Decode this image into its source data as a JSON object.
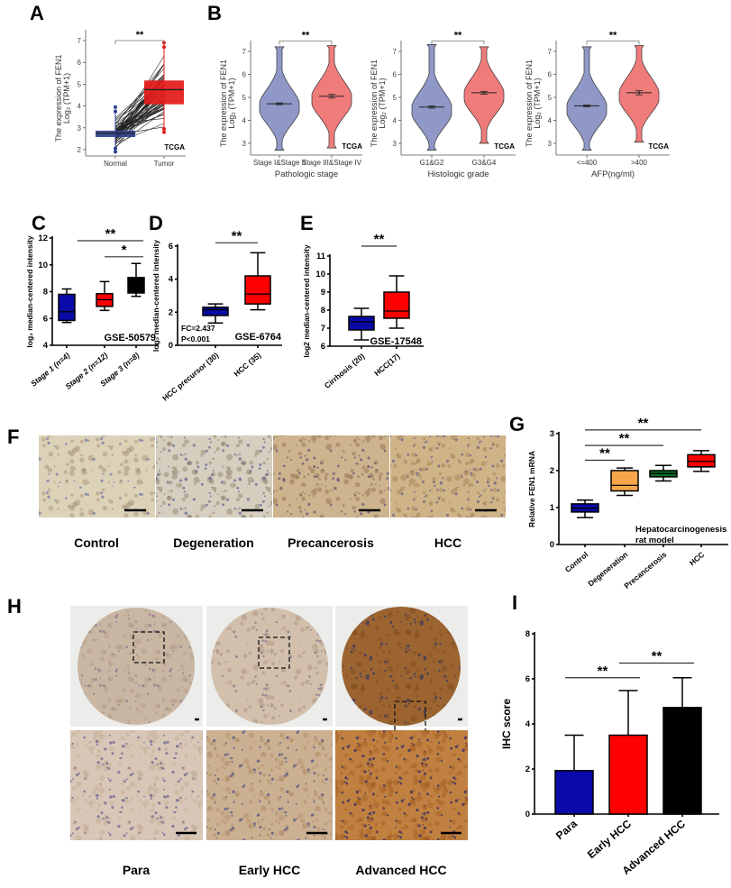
{
  "panel_labels": {
    "A": "A",
    "B": "B",
    "C": "C",
    "D": "D",
    "E": "E",
    "F": "F",
    "G": "G",
    "H": "H",
    "I": "I"
  },
  "panel_F": {
    "labels": [
      "Control",
      "Degeneration",
      "Precancerosis",
      "HCC"
    ]
  },
  "panel_H": {
    "labels": [
      "Para",
      "Early HCC",
      "Advanced HCC"
    ]
  },
  "colors": {
    "blue_box": "#2f3f8f",
    "red_box": "#e41a1a",
    "violin_blue": "#8f98c6",
    "violin_red": "#f07b7b",
    "gp_blue": "#0a0aa8",
    "gp_red": "#ff0000",
    "gp_black": "#000000",
    "gp_orange": "#f7a54b",
    "gp_green": "#0b6b1e"
  },
  "chart_data": [
    {
      "id": "A",
      "type": "box",
      "ylabel": [
        "The expression of FEN1",
        "Log₂ (TPM+1)"
      ],
      "xlabel": "",
      "categories": [
        "Normal",
        "Tumor"
      ],
      "ylim": [
        2,
        7
      ],
      "yticks": [
        2,
        3,
        4,
        5,
        6,
        7
      ],
      "boxes": [
        {
          "min": 1.9,
          "q1": 2.6,
          "median": 2.75,
          "q3": 2.85,
          "max": 3.95,
          "color": "#2f3f8f"
        },
        {
          "min": 2.8,
          "q1": 4.1,
          "median": 4.75,
          "q3": 5.15,
          "max": 6.9,
          "color": "#e41a1a"
        }
      ],
      "paired_lines": true,
      "annotation": [
        "TCGA"
      ],
      "significance": [
        {
          "from": 0,
          "to": 1,
          "y": 7.0,
          "label": "**"
        }
      ]
    },
    {
      "id": "B1",
      "type": "violin",
      "ylabel": [
        "The expression of FEN1",
        "Log₂ (TPM+1)"
      ],
      "xlabel": "Pathologic stage",
      "categories": [
        "Stage I&Stage II",
        "Stage III&Stage IV"
      ],
      "ylim": [
        3,
        7
      ],
      "yticks": [
        3,
        4,
        5,
        6,
        7
      ],
      "violins": [
        {
          "mean": 4.72,
          "sem": 0.04,
          "min": 2.7,
          "max": 7.2,
          "color": "#8f98c6"
        },
        {
          "mean": 5.05,
          "sem": 0.08,
          "min": 2.8,
          "max": 7.25,
          "color": "#f07b7b"
        }
      ],
      "annotation": [
        "TCGA"
      ],
      "significance": [
        {
          "from": 0,
          "to": 1,
          "y": 7.45,
          "label": "**"
        }
      ]
    },
    {
      "id": "B2",
      "type": "violin",
      "ylabel": [
        "The expression of FEN1",
        "Log₂ (TPM+1)"
      ],
      "xlabel": "Histologic grade",
      "categories": [
        "G1&G2",
        "G3&G4"
      ],
      "ylim": [
        3,
        7
      ],
      "yticks": [
        3,
        4,
        5,
        6,
        7
      ],
      "violins": [
        {
          "mean": 4.58,
          "sem": 0.05,
          "min": 2.7,
          "max": 7.3,
          "color": "#8f98c6"
        },
        {
          "mean": 5.2,
          "sem": 0.06,
          "min": 3.0,
          "max": 7.2,
          "color": "#f07b7b"
        }
      ],
      "annotation": [
        "TCGA"
      ],
      "significance": [
        {
          "from": 0,
          "to": 1,
          "y": 7.45,
          "label": "**"
        }
      ]
    },
    {
      "id": "B3",
      "type": "violin",
      "ylabel": [
        "The expression of FEN1",
        "Log₂ (TPM+1)"
      ],
      "xlabel": "AFP(ng/ml)",
      "categories": [
        "<=400",
        ">400"
      ],
      "ylim": [
        3,
        7
      ],
      "yticks": [
        3,
        4,
        5,
        6,
        7
      ],
      "violins": [
        {
          "mean": 4.63,
          "sem": 0.04,
          "min": 2.7,
          "max": 7.2,
          "color": "#8f98c6"
        },
        {
          "mean": 5.2,
          "sem": 0.09,
          "min": 3.05,
          "max": 7.25,
          "color": "#f07b7b"
        }
      ],
      "annotation": [
        "TCGA"
      ],
      "significance": [
        {
          "from": 0,
          "to": 1,
          "y": 7.45,
          "label": "**"
        }
      ]
    },
    {
      "id": "C",
      "type": "box",
      "ylabel": [
        "log₂ median-centered intensity"
      ],
      "categories": [
        "Stage 1 (n=4)",
        "Stage 2 (n=12)",
        "Stage 3 (n=8)"
      ],
      "ylim": [
        4,
        12
      ],
      "yticks": [
        4,
        6,
        8,
        10,
        12
      ],
      "boxes": [
        {
          "min": 5.7,
          "q1": 5.85,
          "median": 6.5,
          "q3": 7.8,
          "max": 8.2,
          "color": "#0a0aa8"
        },
        {
          "min": 6.6,
          "q1": 6.9,
          "median": 7.4,
          "q3": 7.85,
          "max": 8.75,
          "color": "#ff0000"
        },
        {
          "min": 7.65,
          "q1": 7.9,
          "median": 8.3,
          "q3": 9.05,
          "max": 10.1,
          "color": "#000000"
        }
      ],
      "annotation": [
        "GSE-50579"
      ],
      "significance": [
        {
          "from": 0,
          "to": 2,
          "y": 11.8,
          "label": "**"
        },
        {
          "from": 1,
          "to": 2,
          "y": 10.6,
          "label": "*"
        }
      ]
    },
    {
      "id": "D",
      "type": "box",
      "ylabel": [
        "log₂ median-centered intensity"
      ],
      "categories": [
        "HCC precursor (30)",
        "HCC (35)"
      ],
      "ylim": [
        0,
        6
      ],
      "yticks": [
        0,
        2,
        4,
        6
      ],
      "boxes": [
        {
          "min": 1.35,
          "q1": 1.8,
          "median": 2.15,
          "q3": 2.3,
          "max": 2.5,
          "color": "#0a0aa8"
        },
        {
          "min": 2.15,
          "q1": 2.5,
          "median": 3.1,
          "q3": 4.2,
          "max": 5.6,
          "color": "#ff0000"
        }
      ],
      "annotation": [
        "FC=2.437",
        "P<0.001",
        "GSE-6764"
      ],
      "significance": [
        {
          "from": 0,
          "to": 1,
          "y": 6.2,
          "label": "**"
        }
      ]
    },
    {
      "id": "E",
      "type": "box",
      "ylabel": [
        "log2 median-centered intensity"
      ],
      "categories": [
        "Cirrhosis (20)",
        "HCC(17)"
      ],
      "ylim": [
        6,
        11
      ],
      "yticks": [
        6,
        7,
        8,
        9,
        10,
        11
      ],
      "boxes": [
        {
          "min": 6.35,
          "q1": 6.9,
          "median": 7.35,
          "q3": 7.65,
          "max": 8.1,
          "color": "#0a0aa8"
        },
        {
          "min": 7.0,
          "q1": 7.55,
          "median": 7.95,
          "q3": 9.0,
          "max": 9.9,
          "color": "#ff0000"
        }
      ],
      "annotation": [
        "GSE-17548"
      ],
      "significance": [
        {
          "from": 0,
          "to": 1,
          "y": 11.55,
          "label": "**"
        }
      ]
    },
    {
      "id": "G",
      "type": "box",
      "ylabel": [
        "Relative FEN1  mRNA"
      ],
      "categories": [
        "Control",
        "Degeneration",
        "Precancerosis",
        "HCC"
      ],
      "ylim": [
        0,
        3
      ],
      "yticks": [
        0,
        1,
        2,
        3
      ],
      "boxes": [
        {
          "min": 0.73,
          "q1": 0.88,
          "median": 0.98,
          "q3": 1.1,
          "max": 1.2,
          "color": "#0a0aa8"
        },
        {
          "min": 1.33,
          "q1": 1.45,
          "median": 1.6,
          "q3": 2.0,
          "max": 2.07,
          "color": "#f7a54b"
        },
        {
          "min": 1.72,
          "q1": 1.83,
          "median": 1.92,
          "q3": 2.0,
          "max": 2.14,
          "color": "#0b6b1e"
        },
        {
          "min": 1.98,
          "q1": 2.1,
          "median": 2.25,
          "q3": 2.43,
          "max": 2.54,
          "color": "#ff0000"
        }
      ],
      "annotation": [
        "Hepatocarcinogenesis",
        "rat model"
      ],
      "significance": [
        {
          "from": 0,
          "to": 1,
          "y": 2.28,
          "label": "**"
        },
        {
          "from": 0,
          "to": 2,
          "y": 2.68,
          "label": "**"
        },
        {
          "from": 0,
          "to": 3,
          "y": 3.1,
          "label": "**"
        }
      ]
    },
    {
      "id": "I",
      "type": "bar",
      "ylabel": [
        "IHC score"
      ],
      "categories": [
        "Para",
        "Early HCC",
        "Advanced HCC"
      ],
      "ylim": [
        0,
        8
      ],
      "yticks": [
        0,
        2,
        4,
        6,
        8
      ],
      "values": [
        1.93,
        3.5,
        4.73
      ],
      "errors": [
        1.57,
        1.98,
        1.32
      ],
      "colors": [
        "#0a0aa8",
        "#ff0000",
        "#000000"
      ],
      "significance": [
        {
          "from": 0,
          "to": 1,
          "y": 6.05,
          "label": "**"
        },
        {
          "from": 1,
          "to": 2,
          "y": 6.7,
          "label": "**"
        }
      ]
    }
  ]
}
